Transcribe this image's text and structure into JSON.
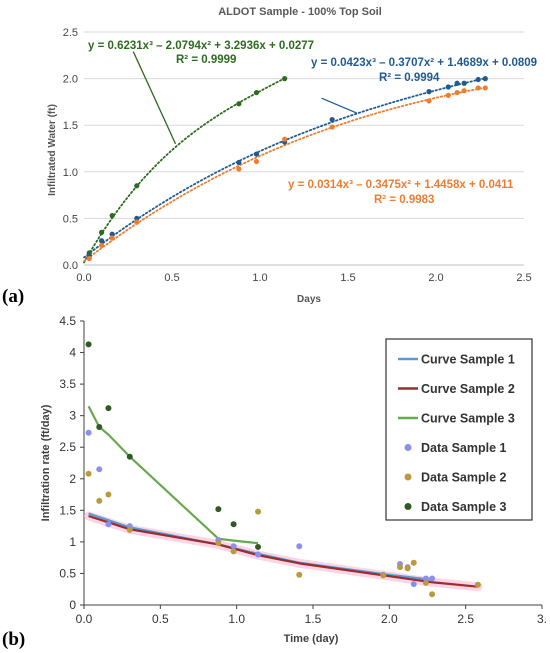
{
  "panel_labels": {
    "a": "(a)",
    "b": "(b)"
  },
  "chart_data": [
    {
      "type": "scatter",
      "title": "ALDOT Sample - 100% Top Soil",
      "xlabel": "Days",
      "ylabel": "Infiltrated Water (ft)",
      "xlim": [
        0,
        2.5
      ],
      "ylim": [
        0,
        2.5
      ],
      "x_ticks": [
        "0.0",
        "0.5",
        "1.0",
        "1.5",
        "2.0",
        "2.5"
      ],
      "y_ticks": [
        "0.0",
        "0.5",
        "1.0",
        "1.5",
        "2.0",
        "2.5"
      ],
      "grid": "horizontal",
      "series": [
        {
          "color": "#2e6b1f",
          "x": [
            0.03,
            0.1,
            0.16,
            0.3,
            0.88,
            0.98,
            1.14
          ],
          "y": [
            0.13,
            0.35,
            0.53,
            0.85,
            1.73,
            1.85,
            2.0
          ],
          "fit": {
            "type": "poly3",
            "coef": [
              0.6231,
              -2.0794,
              3.2936,
              0.0277
            ],
            "x_range": [
              0.0,
              1.14
            ]
          },
          "equation": "y = 0.6231x³ – 2.0794x² + 3.2936x + 0.0277",
          "r2": "R² = 0.9999",
          "leader": {
            "from": [
              0.28,
              2.29
            ],
            "to": [
              0.52,
              1.3
            ]
          }
        },
        {
          "color": "#1f5b91",
          "x": [
            0.03,
            0.1,
            0.16,
            0.3,
            0.88,
            0.98,
            1.14,
            1.41,
            1.96,
            2.07,
            2.12,
            2.16,
            2.24,
            2.28
          ],
          "y": [
            0.1,
            0.26,
            0.33,
            0.5,
            1.1,
            1.19,
            1.32,
            1.56,
            1.86,
            1.91,
            1.95,
            1.95,
            1.99,
            2.0
          ],
          "fit": {
            "type": "poly3",
            "coef": [
              0.0423,
              -0.3707,
              1.4689,
              0.0809
            ],
            "x_range": [
              0.0,
              2.28
            ]
          },
          "equation": "y = 0.0423x³ – 0.3707x² + 1.4689x + 0.0809",
          "r2": "R² = 0.9994",
          "leader": {
            "from": [
              1.35,
              1.79
            ],
            "to": [
              1.55,
              1.63
            ]
          }
        },
        {
          "color": "#ed7d31",
          "x": [
            0.03,
            0.1,
            0.16,
            0.3,
            0.88,
            0.98,
            1.14,
            1.41,
            1.96,
            2.07,
            2.12,
            2.16,
            2.24,
            2.28
          ],
          "y": [
            0.07,
            0.21,
            0.29,
            0.46,
            1.03,
            1.11,
            1.35,
            1.48,
            1.76,
            1.82,
            1.85,
            1.87,
            1.9,
            1.9
          ],
          "fit": {
            "type": "poly3",
            "coef": [
              0.0314,
              -0.3475,
              1.4458,
              0.0411
            ],
            "x_range": [
              0.0,
              2.28
            ]
          },
          "equation": "y = 0.0314x³ – 0.3475x² + 1.4458x + 0.0411",
          "r2": "R² = 0.9983"
        }
      ]
    },
    {
      "type": "line",
      "title": "",
      "xlabel": "Time (day)",
      "ylabel": "Infiltration rate (ft/day)",
      "xlim": [
        0,
        3
      ],
      "ylim": [
        0,
        4.5
      ],
      "x_ticks": [
        "0.0",
        "0.5",
        "1.0",
        "1.5",
        "2.0",
        "2.5",
        "3."
      ],
      "y_ticks": [
        "0",
        "0.5",
        "1",
        "1.5",
        "2",
        "2.5",
        "3",
        "3.5",
        "4",
        "4.5"
      ],
      "grid": "none",
      "legend_position": "right",
      "series": [
        {
          "name": "Curve Sample 1",
          "kind": "line",
          "color": "#5b9bd5",
          "x": [
            0.03,
            0.3,
            0.88,
            1.14,
            1.41,
            1.96,
            2.24,
            2.28
          ],
          "y": [
            1.45,
            1.23,
            0.96,
            0.81,
            0.67,
            0.49,
            0.41,
            0.4
          ]
        },
        {
          "name": "Curve Sample 2",
          "kind": "line",
          "color": "#9b2d2d",
          "x": [
            0.03,
            0.3,
            0.88,
            1.14,
            1.41,
            1.96,
            2.28,
            2.58
          ],
          "y": [
            1.41,
            1.2,
            0.96,
            0.79,
            0.66,
            0.47,
            0.36,
            0.29
          ]
        },
        {
          "name": "Curve Sample 3",
          "kind": "line",
          "color": "#6aa84f",
          "x": [
            0.03,
            0.1,
            0.16,
            0.3,
            0.88,
            0.98,
            1.14
          ],
          "y": [
            3.15,
            2.82,
            2.7,
            2.35,
            1.05,
            1.02,
            0.98
          ]
        },
        {
          "name": "Data Sample 1",
          "kind": "points",
          "color": "#8c8ef0",
          "x": [
            0.03,
            0.1,
            0.16,
            0.3,
            0.88,
            0.98,
            1.14,
            1.41,
            1.96,
            2.07,
            2.12,
            2.16,
            2.24,
            2.28
          ],
          "y": [
            2.73,
            2.15,
            1.28,
            1.25,
            1.03,
            0.93,
            0.8,
            0.93,
            0.48,
            0.65,
            0.6,
            0.33,
            0.42,
            0.42
          ]
        },
        {
          "name": "Data Sample 2",
          "kind": "points",
          "color": "#b99a3c",
          "x": [
            0.03,
            0.1,
            0.16,
            0.3,
            0.88,
            0.98,
            1.14,
            1.41,
            1.96,
            2.07,
            2.12,
            2.16,
            2.24,
            2.28,
            2.58
          ],
          "y": [
            2.08,
            1.65,
            1.75,
            1.19,
            0.98,
            0.85,
            1.48,
            0.48,
            0.47,
            0.6,
            0.58,
            0.67,
            0.35,
            0.17,
            0.32
          ]
        },
        {
          "name": "Data Sample 3",
          "kind": "points",
          "color": "#2f5a22",
          "x": [
            0.03,
            0.1,
            0.16,
            0.3,
            0.88,
            0.98,
            1.14
          ],
          "y": [
            4.13,
            2.82,
            3.12,
            2.35,
            1.52,
            1.28,
            0.92
          ]
        }
      ]
    }
  ]
}
